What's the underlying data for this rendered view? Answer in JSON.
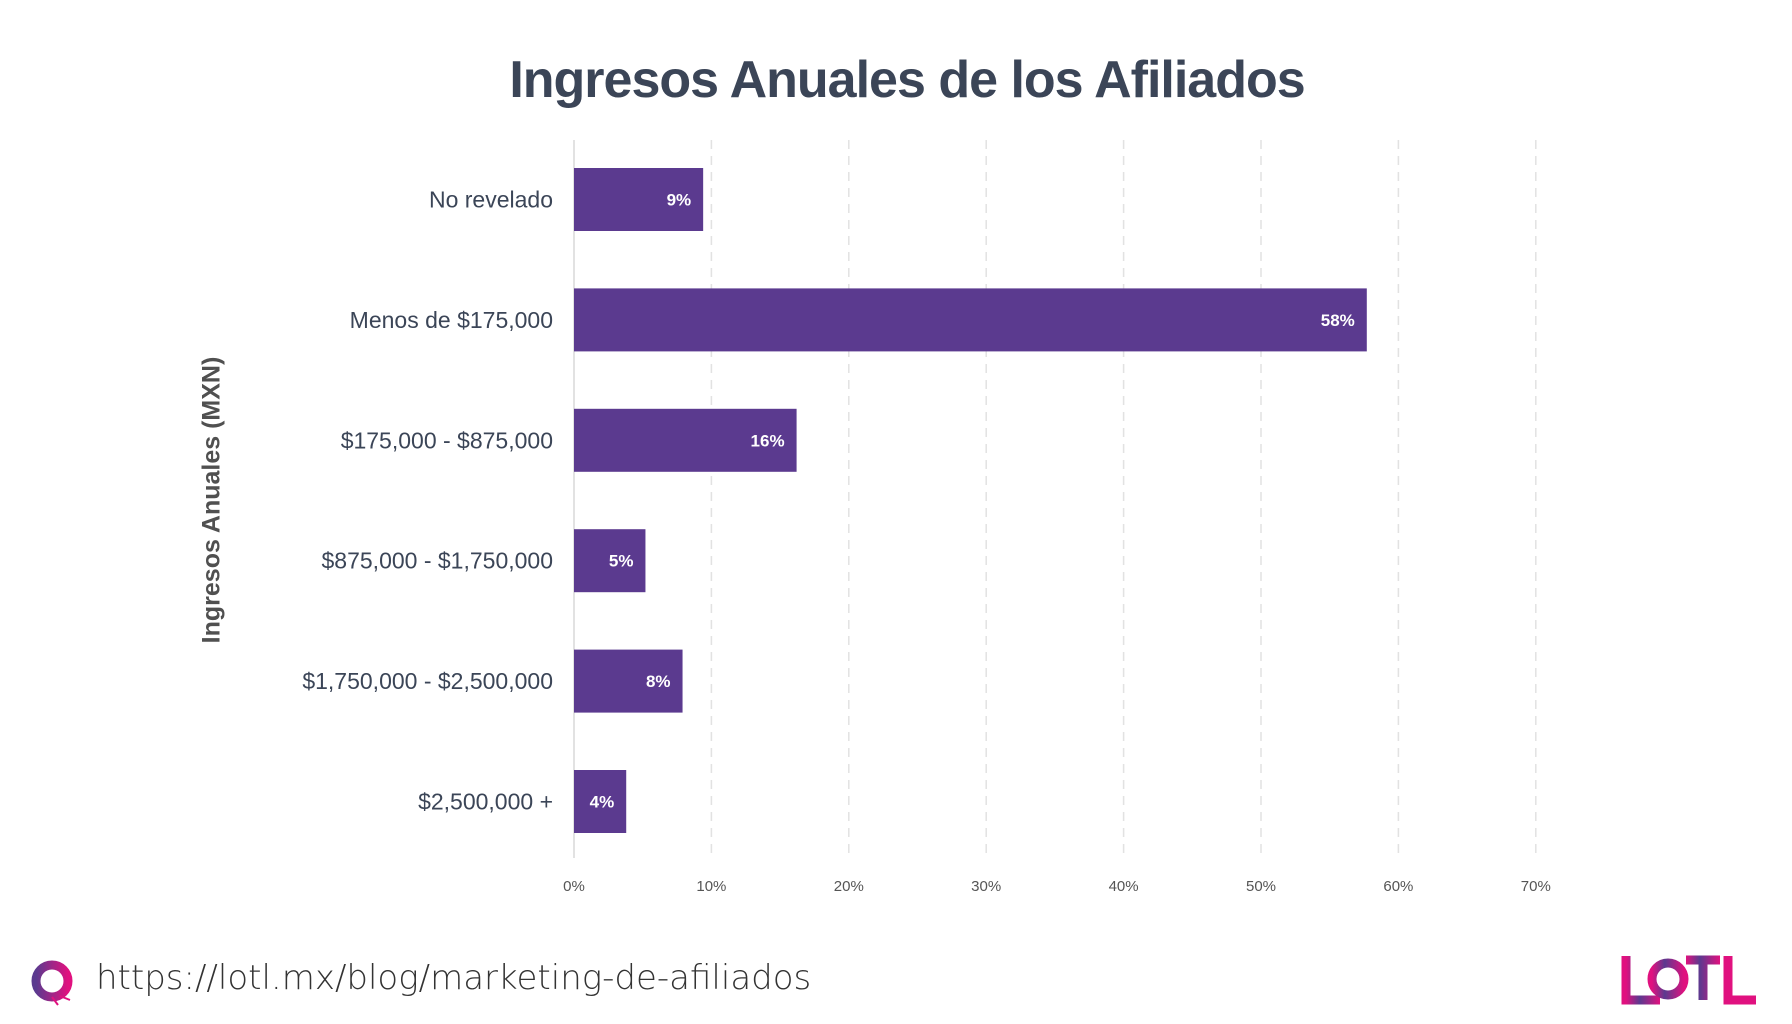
{
  "chart_data": {
    "type": "bar",
    "orientation": "horizontal",
    "title": "Ingresos Anuales de los Afiliados",
    "ylabel": "Ingresos Anuales (MXN)",
    "xlabel": "",
    "categories": [
      "No revelado",
      "Menos de $175,000",
      "$175,000 - $875,000",
      "$875,000 - $1,750,000",
      "$1,750,000 - $2,500,000",
      "$2,500,000 +"
    ],
    "values": [
      9.4,
      57.7,
      16.2,
      5.2,
      7.9,
      3.8
    ],
    "data_labels": [
      "9%",
      "58%",
      "16%",
      "5%",
      "8%",
      "4%"
    ],
    "xlim": [
      0,
      70
    ],
    "xticks": [
      "0%",
      "10%",
      "20%",
      "30%",
      "40%",
      "50%",
      "60%",
      "70%"
    ],
    "grid": "vertical dashed",
    "bar_color": "#5b3a8f"
  },
  "footer": {
    "url": "https://lotl.mx/blog/marketing-de-afiliados",
    "logo_text": "LOTL"
  },
  "colors": {
    "accent_pink": "#e0117f",
    "accent_purple": "#5b3a8f"
  }
}
